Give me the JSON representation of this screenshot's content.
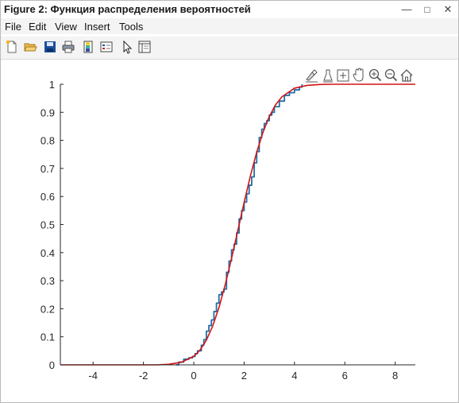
{
  "window": {
    "title": "Figure 2: Функция распределения вероятностей",
    "minimize": "—",
    "maximize": "□",
    "close": "✕"
  },
  "menu": [
    "File",
    "Edit",
    "View",
    "Insert",
    "Tools"
  ],
  "toolbar_icons": [
    "new-figure-icon",
    "open-file-icon",
    "save-icon",
    "print-icon",
    "colorbar-icon",
    "legend-icon",
    "edit-pointer-icon",
    "property-inspector-icon"
  ],
  "axes_toolbar_icons": [
    "brush-icon",
    "data-cursor-icon",
    "zoom-in-icon",
    "pan-icon",
    "zoom-in-icon",
    "zoom-out-icon",
    "home-icon"
  ],
  "colors": {
    "empirical": "#1f6fa8",
    "theoretical": "#d41313",
    "axis": "#262626"
  },
  "chart_data": {
    "type": "line",
    "title": "",
    "xlabel": "",
    "ylabel": "",
    "xlim": [
      -5.3,
      8.8
    ],
    "ylim": [
      0,
      1
    ],
    "xticks": [
      -4,
      -2,
      0,
      2,
      4,
      6,
      8
    ],
    "yticks": [
      0,
      0.1,
      0.2,
      0.3,
      0.4,
      0.5,
      0.6,
      0.7,
      0.8,
      0.9,
      1
    ],
    "grid": false,
    "series": [
      {
        "style": "step",
        "color": "#1f6fa8",
        "x": [
          -0.7,
          -0.6,
          -0.4,
          -0.2,
          -0.05,
          0.05,
          0.15,
          0.3,
          0.4,
          0.5,
          0.6,
          0.7,
          0.8,
          0.9,
          1.0,
          1.1,
          1.2,
          1.3,
          1.4,
          1.5,
          1.6,
          1.7,
          1.8,
          1.9,
          2.0,
          2.1,
          2.2,
          2.3,
          2.4,
          2.5,
          2.6,
          2.7,
          2.8,
          2.9,
          3.0,
          3.1,
          3.2,
          3.4,
          3.6,
          3.8,
          4.0,
          4.2,
          4.3
        ],
        "y": [
          0,
          0.01,
          0.02,
          0.025,
          0.03,
          0.04,
          0.05,
          0.07,
          0.09,
          0.12,
          0.14,
          0.16,
          0.19,
          0.22,
          0.25,
          0.26,
          0.27,
          0.33,
          0.37,
          0.41,
          0.43,
          0.47,
          0.52,
          0.55,
          0.58,
          0.61,
          0.64,
          0.67,
          0.72,
          0.76,
          0.81,
          0.84,
          0.86,
          0.87,
          0.89,
          0.9,
          0.92,
          0.94,
          0.96,
          0.97,
          0.98,
          0.99,
          1.0
        ]
      },
      {
        "style": "line",
        "color": "#d41313",
        "x": [
          -5.3,
          -1.5,
          -1.0,
          -0.5,
          0.0,
          0.25,
          0.5,
          0.75,
          1.0,
          1.25,
          1.5,
          1.75,
          2.0,
          2.25,
          2.5,
          2.75,
          3.0,
          3.25,
          3.5,
          4.0,
          4.5,
          5.0,
          5.5,
          6.0,
          8.8
        ],
        "y": [
          0,
          0.0,
          0.002,
          0.009,
          0.03,
          0.053,
          0.088,
          0.138,
          0.204,
          0.286,
          0.379,
          0.479,
          0.579,
          0.674,
          0.758,
          0.829,
          0.885,
          0.927,
          0.955,
          0.986,
          0.996,
          0.999,
          1.0,
          1.0,
          1.0
        ]
      }
    ]
  }
}
